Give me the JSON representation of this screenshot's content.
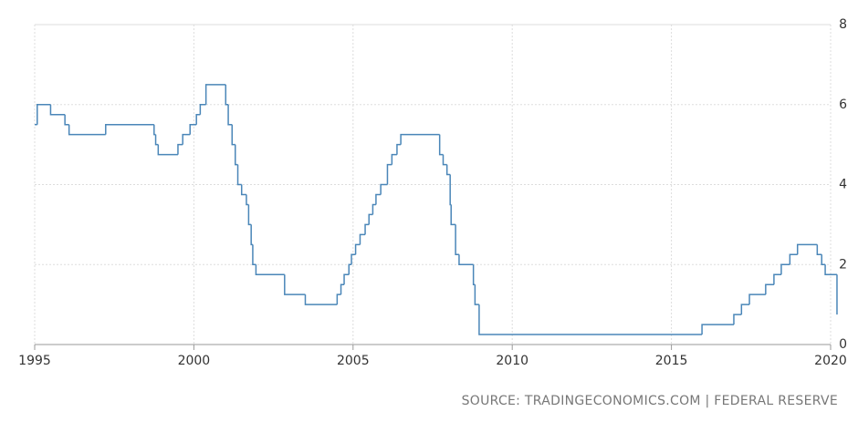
{
  "chart_data": {
    "type": "line",
    "source": "SOURCE: TRADINGECONOMICS.COM | FEDERAL RESERVE",
    "step": true,
    "color": "#4a86b8",
    "grid": true,
    "xlim": [
      1995,
      2020
    ],
    "xticks": [
      1995,
      2000,
      2005,
      2010,
      2015,
      2020
    ],
    "ylim": [
      0,
      8
    ],
    "yticks": [
      0,
      2,
      4,
      6,
      8
    ],
    "x": [
      1995.0,
      1995.08,
      1995.5,
      1995.95,
      1996.08,
      1997.23,
      1998.75,
      1998.8,
      1998.88,
      1999.5,
      1999.65,
      1999.88,
      2000.08,
      2000.2,
      2000.38,
      2001.0,
      2001.08,
      2001.2,
      2001.3,
      2001.38,
      2001.5,
      2001.65,
      2001.72,
      2001.8,
      2001.85,
      2001.95,
      2002.85,
      2003.5,
      2004.5,
      2004.62,
      2004.72,
      2004.87,
      2004.95,
      2005.08,
      2005.22,
      2005.38,
      2005.5,
      2005.62,
      2005.72,
      2005.87,
      2006.08,
      2006.22,
      2006.38,
      2006.5,
      2007.72,
      2007.83,
      2007.95,
      2008.05,
      2008.08,
      2008.22,
      2008.33,
      2008.78,
      2008.83,
      2008.96,
      2015.96,
      2016.96,
      2017.2,
      2017.45,
      2017.96,
      2018.22,
      2018.45,
      2018.72,
      2018.96,
      2019.58,
      2019.72,
      2019.83,
      2020.2
    ],
    "values": [
      5.5,
      6.0,
      5.75,
      5.5,
      5.25,
      5.5,
      5.25,
      5.0,
      4.75,
      5.0,
      5.25,
      5.5,
      5.75,
      6.0,
      6.5,
      6.0,
      5.5,
      5.0,
      4.5,
      4.0,
      3.75,
      3.5,
      3.0,
      2.5,
      2.0,
      1.75,
      1.25,
      1.0,
      1.25,
      1.5,
      1.75,
      2.0,
      2.25,
      2.5,
      2.75,
      3.0,
      3.25,
      3.5,
      3.75,
      4.0,
      4.5,
      4.75,
      5.0,
      5.25,
      4.75,
      4.5,
      4.25,
      3.5,
      3.0,
      2.25,
      2.0,
      1.5,
      1.0,
      0.25,
      0.5,
      0.75,
      1.0,
      1.25,
      1.5,
      1.75,
      2.0,
      2.25,
      2.5,
      2.25,
      2.0,
      1.75,
      0.75
    ]
  }
}
